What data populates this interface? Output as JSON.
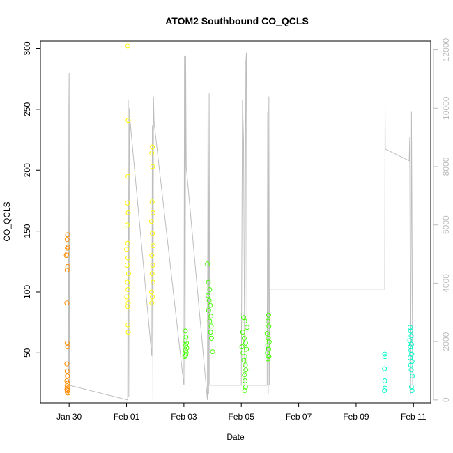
{
  "chart_data": {
    "type": "scatter",
    "title": "ATOM2 Southbound CO_QCLS",
    "xlabel": "Date",
    "ylabel": "CO_QCLS",
    "x_ticks": [
      "Jan 30",
      "Feb 01",
      "Feb 03",
      "Feb 05",
      "Feb 07",
      "Feb 09",
      "Feb 11"
    ],
    "y_ticks": [
      50,
      100,
      150,
      200,
      250,
      300
    ],
    "y2_ticks": [
      0,
      2000,
      4000,
      6000,
      8000,
      10000,
      12000
    ],
    "xlim": [
      "Jan 29.0",
      "Feb 11.6"
    ],
    "ylim": [
      9,
      306
    ],
    "y2lim": [
      -100,
      12300
    ],
    "colors": {
      "axis": "#000000",
      "secondary_axis": "#bdbdbd",
      "altitude_line": "#bdbdbd",
      "color_scale": [
        "#ff8c00",
        "#ffff00",
        "#44ff00",
        "#00ffcc"
      ]
    },
    "series": [
      {
        "color": "#ff8c00",
        "points": [
          [
            "Jan 29.95",
            147
          ],
          [
            "Jan 29.93",
            143
          ],
          [
            "Jan 29.96",
            137
          ],
          [
            "Jan 29.94",
            136
          ],
          [
            "Jan 29.92",
            131
          ],
          [
            "Jan 29.9",
            130
          ],
          [
            "Jan 29.95",
            121
          ],
          [
            "Jan 29.93",
            118
          ],
          [
            "Jan 29.92",
            91
          ],
          [
            "Jan 29.93",
            58
          ],
          [
            "Jan 29.95",
            55
          ],
          [
            "Jan 29.92",
            41
          ],
          [
            "Jan 29.93",
            35
          ],
          [
            "Jan 29.94",
            31
          ],
          [
            "Jan 29.92",
            27
          ],
          [
            "Jan 29.95",
            25
          ],
          [
            "Jan 29.93",
            23
          ],
          [
            "Jan 29.94",
            21
          ],
          [
            "Jan 29.92",
            20
          ],
          [
            "Jan 29.95",
            19
          ],
          [
            "Jan 29.93",
            18
          ],
          [
            "Jan 29.96",
            17
          ]
        ]
      },
      {
        "color": "#ffff00",
        "points": [
          [
            "Feb 01.04",
            302
          ],
          [
            "Feb 01.06",
            241
          ],
          [
            "Feb 01.05",
            195
          ],
          [
            "Feb 01.03",
            173
          ],
          [
            "Feb 01.06",
            165
          ],
          [
            "Feb 01.02",
            155
          ],
          [
            "Feb 01.04",
            140
          ],
          [
            "Feb 01.0",
            135
          ],
          [
            "Feb 01.05",
            128
          ],
          [
            "Feb 01.02",
            122
          ],
          [
            "Feb 01.07",
            115
          ],
          [
            "Feb 01.03",
            108
          ],
          [
            "Feb 01.05",
            102
          ],
          [
            "Feb 01.01",
            96
          ],
          [
            "Feb 01.06",
            91
          ],
          [
            "Feb 01.04",
            88
          ],
          [
            "Feb 01.05",
            73
          ],
          [
            "Feb 01.06",
            67
          ],
          [
            "Feb 01.9",
            219
          ],
          [
            "Feb 01.88",
            214
          ],
          [
            "Feb 01.91",
            203
          ],
          [
            "Feb 01.89",
            174
          ],
          [
            "Feb 01.92",
            165
          ],
          [
            "Feb 01.87",
            158
          ],
          [
            "Feb 01.9",
            148
          ],
          [
            "Feb 01.93",
            138
          ],
          [
            "Feb 01.88",
            130
          ],
          [
            "Feb 01.91",
            122
          ],
          [
            "Feb 01.89",
            115
          ],
          [
            "Feb 01.92",
            108
          ],
          [
            "Feb 01.87",
            100
          ],
          [
            "Feb 01.9",
            96
          ],
          [
            "Feb 01.88",
            91
          ]
        ]
      },
      {
        "color": "#44ff00",
        "points": [
          [
            "Feb 03.05",
            68
          ],
          [
            "Feb 03.07",
            63
          ],
          [
            "Feb 03.04",
            60
          ],
          [
            "Feb 03.09",
            58
          ],
          [
            "Feb 03.06",
            56
          ],
          [
            "Feb 03.1",
            54
          ],
          [
            "Feb 03.05",
            52
          ],
          [
            "Feb 03.08",
            50
          ],
          [
            "Feb 03.06",
            48
          ],
          [
            "Feb 03.03",
            47
          ],
          [
            "Feb 03.82",
            123
          ],
          [
            "Feb 03.85",
            108
          ],
          [
            "Feb 03.9",
            102
          ],
          [
            "Feb 03.84",
            97
          ],
          [
            "Feb 03.88",
            93
          ],
          [
            "Feb 03.92",
            89
          ],
          [
            "Feb 03.86",
            85
          ],
          [
            "Feb 03.94",
            80
          ],
          [
            "Feb 03.9",
            76
          ],
          [
            "Feb 03.95",
            72
          ],
          [
            "Feb 03.93",
            67
          ],
          [
            "Feb 03.96",
            62
          ],
          [
            "Feb 04.0",
            51
          ],
          [
            "Feb 05.08",
            79
          ],
          [
            "Feb 05.12",
            76
          ],
          [
            "Feb 05.2",
            71
          ],
          [
            "Feb 05.05",
            67
          ],
          [
            "Feb 05.1",
            62
          ],
          [
            "Feb 05.15",
            58
          ],
          [
            "Feb 05.02",
            55
          ],
          [
            "Feb 05.18",
            53
          ],
          [
            "Feb 05.06",
            50
          ],
          [
            "Feb 05.12",
            47
          ],
          [
            "Feb 05.09",
            44
          ],
          [
            "Feb 05.14",
            40
          ],
          [
            "Feb 05.16",
            36
          ],
          [
            "Feb 05.11",
            32
          ],
          [
            "Feb 05.13",
            27
          ],
          [
            "Feb 05.15",
            22
          ],
          [
            "Feb 05.12",
            19
          ],
          [
            "Feb 05.95",
            81
          ],
          [
            "Feb 05.93",
            76
          ],
          [
            "Feb 05.96",
            72
          ],
          [
            "Feb 05.9",
            66
          ],
          [
            "Feb 05.94",
            62
          ],
          [
            "Feb 05.97",
            59
          ],
          [
            "Feb 05.92",
            56
          ],
          [
            "Feb 05.95",
            53
          ],
          [
            "Feb 05.91",
            50
          ],
          [
            "Feb 05.96",
            47
          ],
          [
            "Feb 05.93",
            45
          ]
        ]
      },
      {
        "color": "#00ffcc",
        "points": [
          [
            "Feb 10.0",
            49
          ],
          [
            "Feb 10.01",
            47
          ],
          [
            "Feb 09.99",
            37
          ],
          [
            "Feb 10.0",
            27
          ],
          [
            "Feb 10.01",
            21
          ],
          [
            "Feb 09.99",
            19
          ],
          [
            "Feb 10.88",
            71
          ],
          [
            "Feb 10.9",
            68
          ],
          [
            "Feb 10.92",
            64
          ],
          [
            "Feb 10.87",
            60
          ],
          [
            "Feb 10.93",
            57
          ],
          [
            "Feb 10.89",
            55
          ],
          [
            "Feb 10.91",
            52
          ],
          [
            "Feb 10.94",
            49
          ],
          [
            "Feb 10.88",
            46
          ],
          [
            "Feb 10.95",
            43
          ],
          [
            "Feb 10.9",
            40
          ],
          [
            "Feb 10.92",
            36
          ],
          [
            "Feb 10.96",
            31
          ],
          [
            "Feb 10.93",
            22
          ],
          [
            "Feb 10.95",
            19
          ]
        ]
      }
    ],
    "altitude_line": [
      [
        "Jan 29.98",
        1000
      ],
      [
        "Jan 29.99",
        10100
      ],
      [
        "Jan 30.0",
        11200
      ],
      [
        "Jan 30.01",
        500
      ],
      [
        "Feb 01.04",
        0
      ],
      [
        "Feb 01.06",
        10300
      ],
      [
        "Feb 01.08",
        100
      ],
      [
        "Feb 01.1",
        10000
      ],
      [
        "Feb 01.12",
        9600
      ],
      [
        "Feb 01.88",
        1500
      ],
      [
        "Feb 01.9",
        9400
      ],
      [
        "Feb 01.92",
        0
      ],
      [
        "Feb 01.94",
        10400
      ],
      [
        "Feb 01.96",
        9500
      ],
      [
        "Feb 03.0",
        500
      ],
      [
        "Feb 03.02",
        11800
      ],
      [
        "Feb 03.04",
        200
      ],
      [
        "Feb 03.06",
        11800
      ],
      [
        "Feb 03.08",
        8000
      ],
      [
        "Feb 03.82",
        0
      ],
      [
        "Feb 03.84",
        10200
      ],
      [
        "Feb 03.86",
        200
      ],
      [
        "Feb 03.88",
        10500
      ],
      [
        "Feb 03.9",
        500
      ],
      [
        "Feb 05.0",
        500
      ],
      [
        "Feb 05.04",
        10300
      ],
      [
        "Feb 05.08",
        8900
      ],
      [
        "Feb 05.12",
        500
      ],
      [
        "Feb 05.16",
        11600
      ],
      [
        "Feb 05.18",
        11900
      ],
      [
        "Feb 05.2",
        500
      ],
      [
        "Feb 05.9",
        500
      ],
      [
        "Feb 05.92",
        9900
      ],
      [
        "Feb 05.94",
        200
      ],
      [
        "Feb 05.96",
        10400
      ],
      [
        "Feb 05.98",
        500
      ],
      [
        "Feb 06.0",
        3800
      ],
      [
        "Feb 10.0",
        3800
      ],
      [
        "Feb 10.01",
        10100
      ],
      [
        "Feb 10.02",
        8600
      ],
      [
        "Feb 10.85",
        8200
      ],
      [
        "Feb 10.87",
        9000
      ],
      [
        "Feb 10.9",
        200
      ],
      [
        "Feb 10.93",
        9900
      ],
      [
        "Feb 10.97",
        500
      ]
    ]
  }
}
